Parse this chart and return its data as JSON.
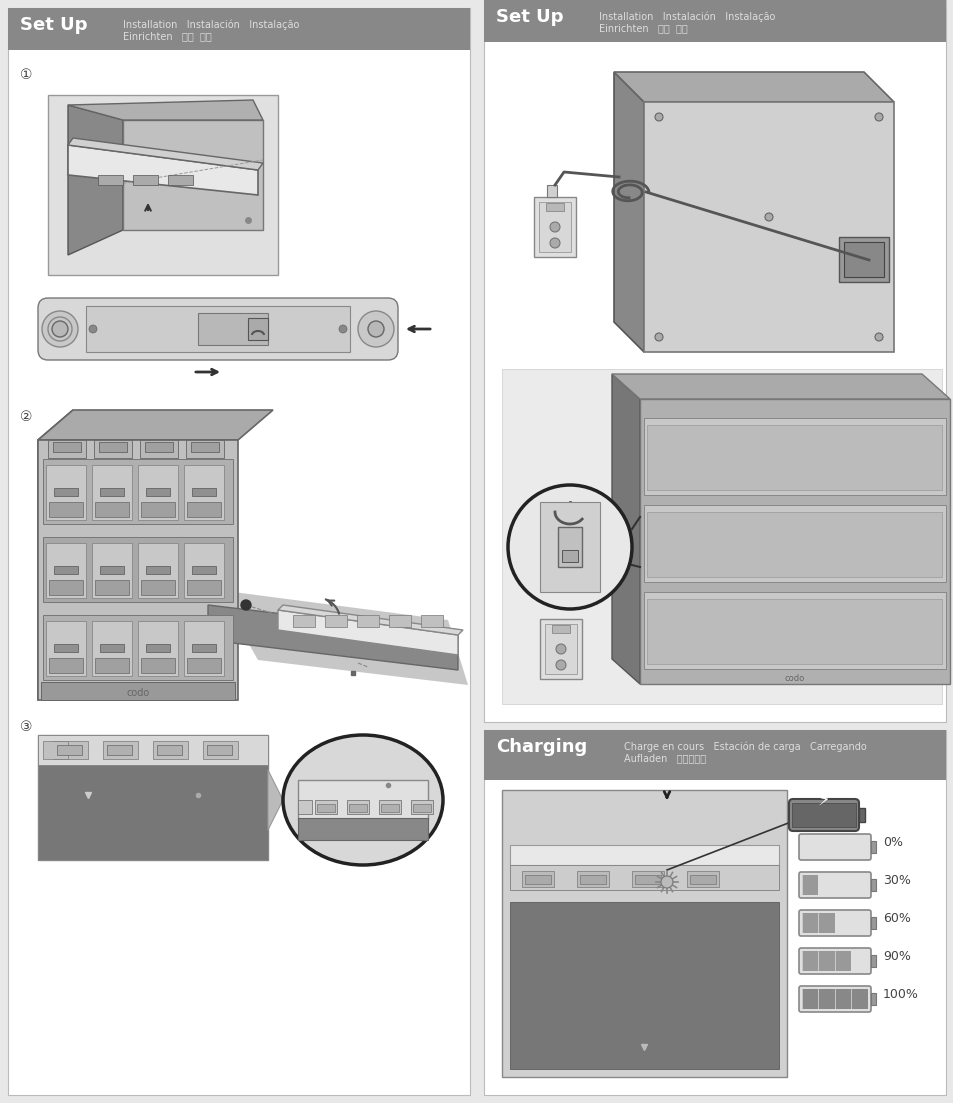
{
  "page_bg": "#e8e8e8",
  "panel_bg": "#ffffff",
  "header_bg": "#888888",
  "border_color": "#cccccc",
  "left_header_bold": "Set Up",
  "left_header_line1": "Installation   Instalación   Instalação",
  "left_header_line2": "Einrichten   设置  셈업",
  "right_header_bold": "Set Up",
  "right_header_line1": "Installation   Instalación   Instalação",
  "right_header_line2": "Einrichten   设置  셈업",
  "charging_header_bold": "Charging",
  "charging_header_line1": "Charge en cours   Estación de carga   Carregando",
  "charging_header_line2": "Aufladen   充电스충전",
  "step1": "①",
  "step2": "②",
  "step3": "③",
  "battery_labels": [
    "0%",
    "30%",
    "60%",
    "90%",
    "100%"
  ],
  "battery_fills": [
    0.0,
    0.25,
    0.5,
    0.75,
    1.0
  ],
  "fig_w": 9.54,
  "fig_h": 11.03
}
